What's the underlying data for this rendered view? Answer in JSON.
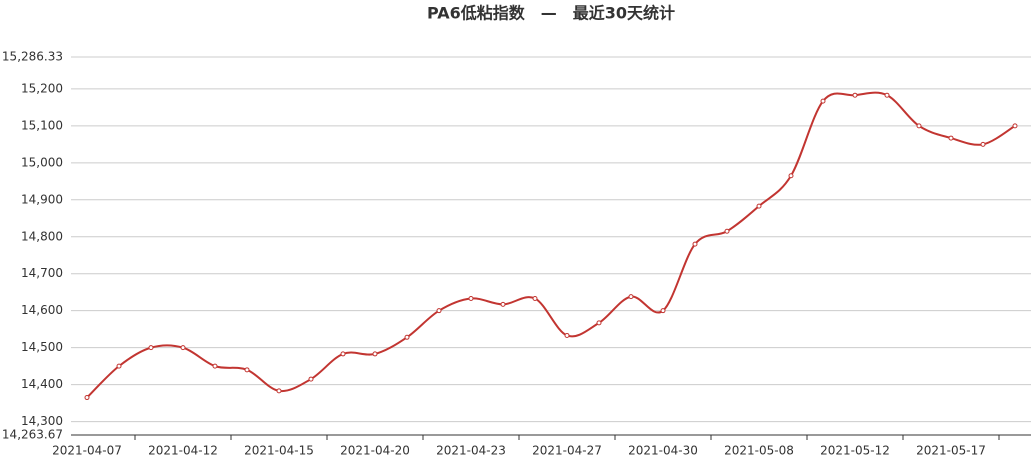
{
  "chart_data": {
    "type": "line",
    "title": "PA6低粘指数　—　最近30天统计",
    "categories": [
      "2021-04-07",
      null,
      null,
      "2021-04-12",
      null,
      null,
      "2021-04-15",
      null,
      null,
      "2021-04-20",
      null,
      null,
      "2021-04-23",
      null,
      null,
      "2021-04-27",
      null,
      null,
      "2021-04-30",
      null,
      null,
      "2021-05-08",
      null,
      null,
      "2021-05-12",
      null,
      null,
      "2021-05-17",
      null,
      null
    ],
    "series": [
      {
        "name": "PA6低粘指数",
        "color": "#c23531",
        "values": [
          14365,
          14450,
          14500,
          14500,
          14450,
          14440,
          14383,
          14415,
          14483,
          14483,
          14528,
          14600,
          14633,
          14617,
          14633,
          14533,
          14567,
          14638,
          14600,
          14780,
          14815,
          14883,
          14965,
          15167,
          15183,
          15183,
          15100,
          15067,
          15050,
          15100
        ]
      }
    ],
    "ylim": [
      14263.67,
      15286.33
    ],
    "yticks": [
      {
        "value": 14263.67,
        "label": "14,263.67"
      },
      {
        "value": 14300,
        "label": "14,300"
      },
      {
        "value": 14400,
        "label": "14,400"
      },
      {
        "value": 14500,
        "label": "14,500"
      },
      {
        "value": 14600,
        "label": "14,600"
      },
      {
        "value": 14700,
        "label": "14,700"
      },
      {
        "value": 14800,
        "label": "14,800"
      },
      {
        "value": 14900,
        "label": "14,900"
      },
      {
        "value": 15000,
        "label": "15,000"
      },
      {
        "value": 15100,
        "label": "15,100"
      },
      {
        "value": 15200,
        "label": "15,200"
      },
      {
        "value": 15286.33,
        "label": "15,286.33"
      }
    ],
    "grid": true
  }
}
